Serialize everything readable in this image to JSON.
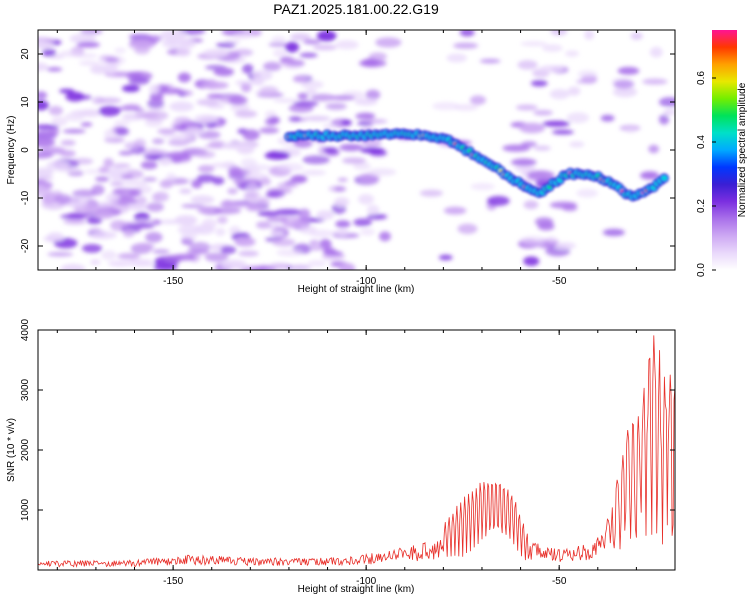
{
  "title": "PAZ1.2025.181.00.22.G19",
  "chart_data": [
    {
      "type": "heatmap",
      "xlabel": "Height of straight line (km)",
      "ylabel": "Frequency (Hz)",
      "colorbar_label": "Normalized spectral amplitude",
      "xlim": [
        -185,
        -20
      ],
      "ylim": [
        -25,
        25
      ],
      "zlim": [
        0.0,
        0.75
      ],
      "x_ticks": [
        -150,
        -100,
        -50
      ],
      "y_ticks": [
        -20,
        -10,
        0,
        10,
        20
      ],
      "colorbar_ticks": [
        0.0,
        0.2,
        0.4,
        0.6
      ],
      "colorscale": [
        "#ffffff",
        "#e9d8fb",
        "#cda8f3",
        "#a970ea",
        "#7b2fe0",
        "#3a1fd4",
        "#0038ff",
        "#00aaff",
        "#00e0c8",
        "#00e25a",
        "#74ee00",
        "#e8e800",
        "#ffa000",
        "#ff3800",
        "#ff1493"
      ],
      "ridge": {
        "description_free_points": [
          {
            "x": -120,
            "y": 3
          },
          {
            "x": -110,
            "y": 3
          },
          {
            "x": -100,
            "y": 3
          },
          {
            "x": -90,
            "y": 3.5
          },
          {
            "x": -80,
            "y": 2.5
          },
          {
            "x": -72,
            "y": -1
          },
          {
            "x": -66,
            "y": -4
          },
          {
            "x": -60,
            "y": -7
          },
          {
            "x": -55,
            "y": -9
          },
          {
            "x": -48,
            "y": -5
          },
          {
            "x": -42,
            "y": -5
          },
          {
            "x": -36,
            "y": -7
          },
          {
            "x": -31,
            "y": -10
          },
          {
            "x": -26,
            "y": -8
          },
          {
            "x": -22,
            "y": -5
          }
        ]
      }
    },
    {
      "type": "line",
      "xlabel": "Height of straight line (km)",
      "ylabel": "SNR (10 * v/v)",
      "xlim": [
        -185,
        -20
      ],
      "ylim": [
        0,
        4000
      ],
      "x_ticks": [
        -150,
        -100,
        -50
      ],
      "y_ticks": [
        1000,
        2000,
        3000,
        4000
      ],
      "line_color": "#e8302a",
      "envelope": [
        {
          "x": -185,
          "y": 150
        },
        {
          "x": -160,
          "y": 170
        },
        {
          "x": -145,
          "y": 260
        },
        {
          "x": -130,
          "y": 200
        },
        {
          "x": -110,
          "y": 210
        },
        {
          "x": -100,
          "y": 260
        },
        {
          "x": -90,
          "y": 380
        },
        {
          "x": -82,
          "y": 500
        },
        {
          "x": -78,
          "y": 900
        },
        {
          "x": -74,
          "y": 1200
        },
        {
          "x": -70,
          "y": 1450
        },
        {
          "x": -66,
          "y": 1500
        },
        {
          "x": -62,
          "y": 1250
        },
        {
          "x": -58,
          "y": 500
        },
        {
          "x": -50,
          "y": 340
        },
        {
          "x": -42,
          "y": 450
        },
        {
          "x": -38,
          "y": 700
        },
        {
          "x": -35,
          "y": 1600
        },
        {
          "x": -32,
          "y": 2400
        },
        {
          "x": -29,
          "y": 2600
        },
        {
          "x": -26,
          "y": 4000
        },
        {
          "x": -23,
          "y": 3500
        },
        {
          "x": -20,
          "y": 3100
        }
      ]
    }
  ]
}
